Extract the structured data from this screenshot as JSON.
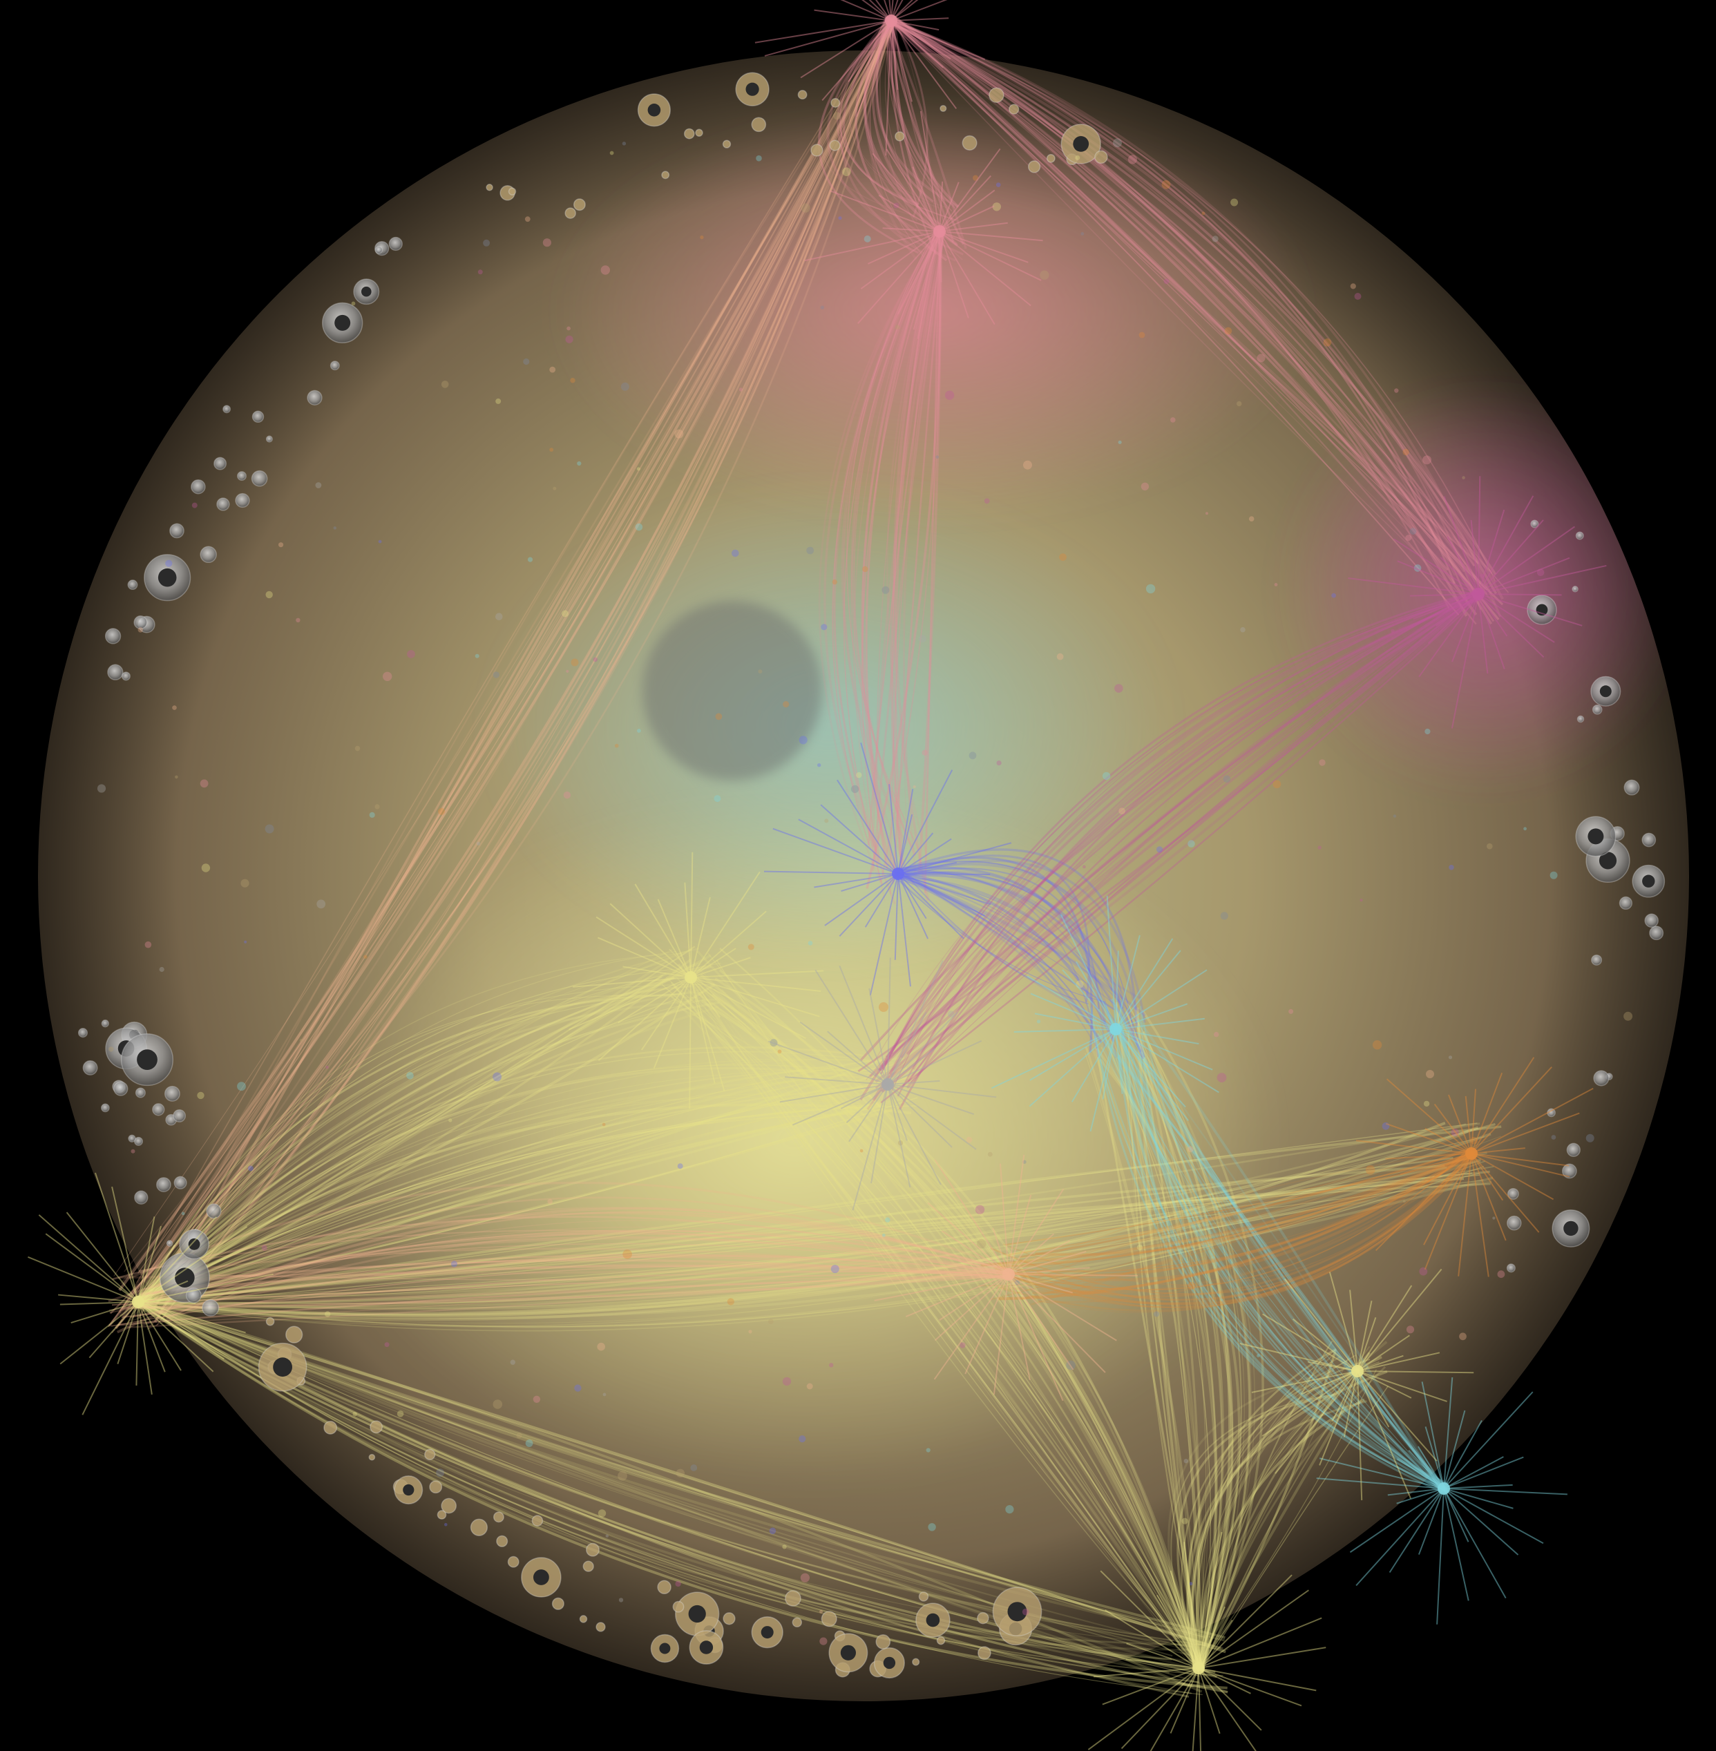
{
  "background_color": "#000000",
  "graph": {
    "type": "network-graph",
    "layout": "circular",
    "labels_visible": false,
    "palette": {
      "yellow": "#e8e28a",
      "pink": "#e58c9a",
      "magenta": "#c0599a",
      "cyan": "#7fd7e0",
      "blue": "#6a6ff0",
      "orange": "#e08a3a",
      "peach": "#f0b490",
      "khaki": "#b8a070",
      "grey": "#a8a8a8",
      "slate": "#7f8aa0"
    },
    "hubs": [
      {
        "id": "hub-top",
        "color": "pink"
      },
      {
        "id": "hub-left",
        "color": "yellow"
      },
      {
        "id": "hub-bottom",
        "color": "yellow"
      },
      {
        "id": "hub-bottom-right",
        "color": "cyan"
      },
      {
        "id": "hub-upper-center",
        "color": "pink"
      },
      {
        "id": "hub-center-blue",
        "color": "blue"
      },
      {
        "id": "hub-center-yellow",
        "color": "yellow"
      },
      {
        "id": "hub-center-white",
        "color": "grey"
      },
      {
        "id": "hub-center-cyan",
        "color": "cyan"
      },
      {
        "id": "hub-right-magenta",
        "color": "magenta"
      },
      {
        "id": "hub-right-orange",
        "color": "orange"
      },
      {
        "id": "hub-lower-center",
        "color": "peach"
      },
      {
        "id": "hub-lower-right",
        "color": "yellow"
      }
    ],
    "edge_bundles": [
      {
        "from": "hub-top",
        "to": "hub-left",
        "color": "peach"
      },
      {
        "from": "hub-top",
        "to": "hub-upper-center",
        "color": "pink"
      },
      {
        "from": "hub-top",
        "to": "hub-right-magenta",
        "color": "pink"
      },
      {
        "from": "hub-left",
        "to": "hub-bottom",
        "color": "yellow"
      },
      {
        "from": "hub-left",
        "to": "hub-center-yellow",
        "color": "yellow"
      },
      {
        "from": "hub-left",
        "to": "hub-right-orange",
        "color": "yellow"
      },
      {
        "from": "hub-left",
        "to": "hub-center-white",
        "color": "yellow"
      },
      {
        "from": "hub-bottom",
        "to": "hub-center-cyan",
        "color": "yellow"
      },
      {
        "from": "hub-bottom",
        "to": "hub-lower-right",
        "color": "yellow"
      },
      {
        "from": "hub-bottom",
        "to": "hub-center-yellow",
        "color": "yellow"
      },
      {
        "from": "hub-bottom-right",
        "to": "hub-center-cyan",
        "color": "cyan"
      },
      {
        "from": "hub-upper-center",
        "to": "hub-center-blue",
        "color": "pink"
      },
      {
        "from": "hub-center-blue",
        "to": "hub-center-cyan",
        "color": "blue"
      },
      {
        "from": "hub-right-magenta",
        "to": "hub-center-white",
        "color": "magenta"
      },
      {
        "from": "hub-right-orange",
        "to": "hub-lower-center",
        "color": "orange"
      },
      {
        "from": "hub-lower-center",
        "to": "hub-left",
        "color": "peach"
      }
    ],
    "node_clusters": [
      {
        "region": "upper-left-rim",
        "color": "grey"
      },
      {
        "region": "left-rim",
        "color": "grey"
      },
      {
        "region": "right-rim",
        "color": "grey"
      },
      {
        "region": "lower-left-rim",
        "color": "khaki"
      },
      {
        "region": "bottom-rim",
        "color": "khaki"
      },
      {
        "region": "top-rim",
        "color": "khaki"
      }
    ]
  }
}
